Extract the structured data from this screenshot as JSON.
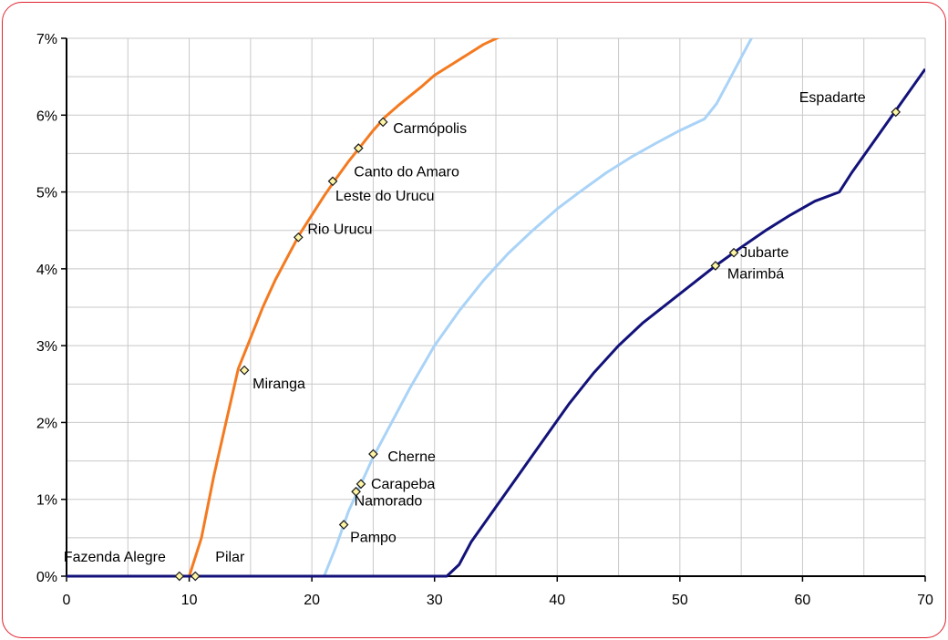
{
  "chart_data": {
    "type": "line",
    "title": "",
    "xlabel": "",
    "ylabel": "",
    "xlim": [
      0,
      70
    ],
    "ylim": [
      0,
      7
    ],
    "x_ticks": [
      "0",
      "10",
      "20",
      "30",
      "40",
      "50",
      "60",
      "70"
    ],
    "y_ticks": [
      "0%",
      "1%",
      "2%",
      "3%",
      "4%",
      "5%",
      "6%",
      "7%"
    ],
    "grid": true,
    "legend": "none",
    "colors": {
      "orange": "#f47a20",
      "light_blue": "#a9d3f7",
      "navy": "#12127a",
      "marker_fill": "#fdf5a5",
      "marker_stroke": "#1a1a1a",
      "frame": "#e0232f"
    },
    "series": [
      {
        "color": "#f47a20",
        "x": [
          0,
          10,
          11,
          12,
          13,
          14,
          15,
          16,
          17,
          18,
          19,
          20,
          21,
          22,
          23,
          24,
          25,
          26,
          27,
          28,
          29,
          30,
          32,
          34,
          36
        ],
        "y": [
          0,
          0,
          0.5,
          1.3,
          2.0,
          2.7,
          3.1,
          3.5,
          3.85,
          4.15,
          4.45,
          4.7,
          4.95,
          5.18,
          5.4,
          5.6,
          5.8,
          5.98,
          6.12,
          6.25,
          6.38,
          6.52,
          6.72,
          6.92,
          7.07
        ]
      },
      {
        "color": "#a9d3f7",
        "x": [
          0,
          21,
          22,
          23,
          24,
          25,
          26,
          28,
          30,
          32,
          34,
          36,
          38,
          40,
          42,
          44,
          46,
          48,
          50,
          52,
          53,
          54,
          55,
          56
        ],
        "y": [
          0,
          0,
          0.4,
          0.85,
          1.2,
          1.55,
          1.85,
          2.45,
          3.0,
          3.45,
          3.85,
          4.2,
          4.5,
          4.78,
          5.02,
          5.25,
          5.45,
          5.63,
          5.8,
          5.95,
          6.15,
          6.45,
          6.75,
          7.05
        ]
      },
      {
        "color": "#12127a",
        "x": [
          0,
          31,
          32,
          33,
          35,
          37,
          39,
          41,
          43,
          45,
          47,
          49,
          51,
          53,
          55,
          57,
          59,
          61,
          63,
          64,
          66,
          68,
          70
        ],
        "y": [
          0,
          0,
          0.15,
          0.45,
          0.9,
          1.35,
          1.8,
          2.25,
          2.65,
          3.0,
          3.3,
          3.55,
          3.8,
          4.05,
          4.28,
          4.5,
          4.7,
          4.88,
          5.0,
          5.25,
          5.7,
          6.15,
          6.6
        ]
      }
    ],
    "points": [
      {
        "name": "Fazenda Alegre",
        "x": 9.2,
        "y": 0.0
      },
      {
        "name": "Pilar",
        "x": 10.5,
        "y": 0.0
      },
      {
        "name": "Miranga",
        "x": 14.5,
        "y": 2.68
      },
      {
        "name": "Rio Urucu",
        "x": 18.9,
        "y": 4.41
      },
      {
        "name": "Leste do Urucu",
        "x": 21.7,
        "y": 5.14
      },
      {
        "name": "Canto do Amaro",
        "x": 23.8,
        "y": 5.57
      },
      {
        "name": "Carmópolis",
        "x": 25.8,
        "y": 5.91
      },
      {
        "name": "Pampo",
        "x": 22.6,
        "y": 0.67
      },
      {
        "name": "Namorado",
        "x": 23.6,
        "y": 1.1
      },
      {
        "name": "Carapeba",
        "x": 24.0,
        "y": 1.2
      },
      {
        "name": "Cherne",
        "x": 25.0,
        "y": 1.59
      },
      {
        "name": "Marimbá",
        "x": 52.9,
        "y": 4.04
      },
      {
        "name": "Jubarte",
        "x": 54.4,
        "y": 4.21
      },
      {
        "name": "Espadarte",
        "x": 67.6,
        "y": 6.04
      }
    ]
  }
}
